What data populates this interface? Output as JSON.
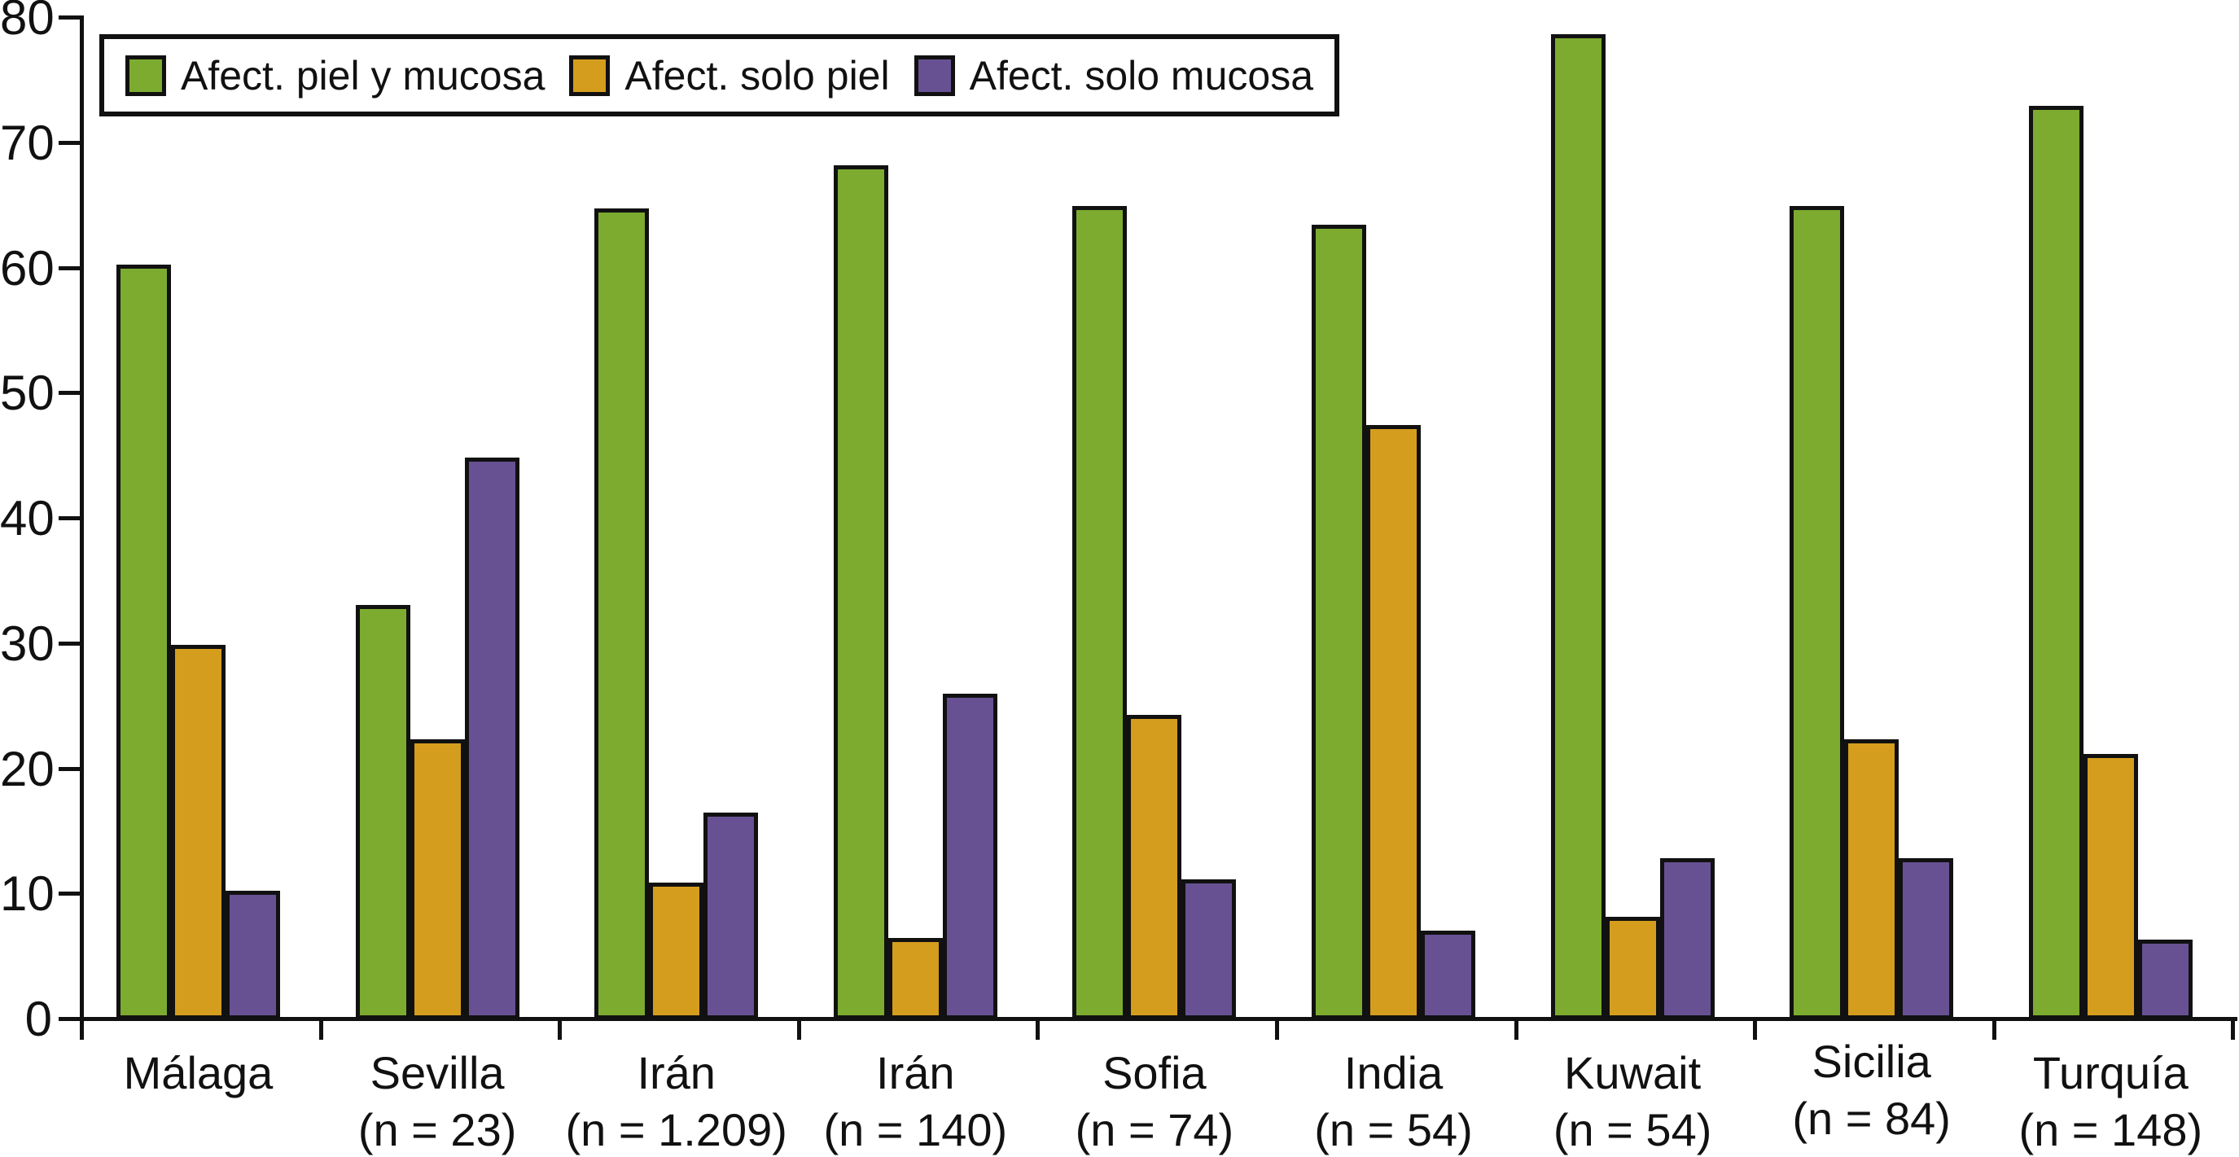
{
  "chart_data": {
    "type": "bar",
    "title": "",
    "xlabel": "",
    "ylabel": "",
    "categories": [
      "Málaga",
      "Sevilla",
      "Irán",
      "Irán",
      "Sofia",
      "India",
      "Kuwait",
      "Sicilia",
      "Turquía"
    ],
    "category_sublabels": [
      "",
      "(n = 23)",
      "(n = 1.209)",
      "(n = 140)",
      "(n = 74)",
      "(n = 54)",
      "(n = 54)",
      "(n = 84)",
      "(n = 148)"
    ],
    "series": [
      {
        "name": "Afect. piel y mucosa",
        "color": "#7cab30",
        "values": [
          60.3,
          33.1,
          64.8,
          68.2,
          65.0,
          63.5,
          78.7,
          65.0,
          73.0
        ]
      },
      {
        "name": "Afect. solo piel",
        "color": "#d49d1d",
        "values": [
          29.9,
          22.4,
          10.9,
          6.5,
          24.3,
          47.5,
          8.2,
          22.4,
          21.2
        ]
      },
      {
        "name": "Afect. solo mucosa",
        "color": "#675193",
        "values": [
          10.3,
          44.9,
          16.5,
          26.0,
          11.2,
          7.1,
          12.9,
          12.9,
          6.4
        ]
      }
    ],
    "ylim": [
      0,
      80
    ],
    "yticks": [
      0,
      10,
      20,
      30,
      40,
      50,
      60,
      70,
      80
    ],
    "grid": false,
    "legend_position": "top-left"
  },
  "colors": {
    "axis": "#111111",
    "bar_border": "#111111",
    "background": "#ffffff"
  }
}
